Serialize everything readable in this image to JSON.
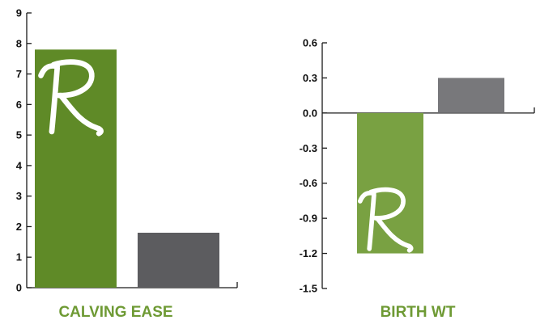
{
  "chart_data": [
    {
      "type": "bar",
      "categories": [
        "CALVING EASE"
      ],
      "series": [
        {
          "values": [
            7.8
          ],
          "color": "#5f8a27",
          "marker": "R"
        },
        {
          "values": [
            1.8
          ],
          "color": "#5c5c5f"
        }
      ],
      "xlabel": "CALVING EASE",
      "ylabel": "",
      "ylim": [
        0,
        9
      ],
      "yticks": [
        0,
        1,
        2,
        3,
        4,
        5,
        6,
        7,
        8,
        9
      ],
      "ytick_labels": [
        "0",
        "1",
        "2",
        "3",
        "4",
        "5",
        "6",
        "7",
        "8",
        "9"
      ],
      "grid": false
    },
    {
      "type": "bar",
      "categories": [
        "BIRTH WT"
      ],
      "series": [
        {
          "values": [
            -1.2
          ],
          "color": "#79a142",
          "marker": "R"
        },
        {
          "values": [
            0.3
          ],
          "color": "#78787b"
        }
      ],
      "xlabel": "BIRTH WT",
      "ylabel": "",
      "ylim": [
        -1.5,
        0.6
      ],
      "yticks": [
        0.6,
        0.3,
        0.0,
        -0.3,
        -0.6,
        -0.9,
        -1.2,
        -1.5
      ],
      "ytick_labels": [
        "0.6",
        "0.3",
        "0.0",
        "-0.3",
        "-0.6",
        "-0.9",
        "-1.2",
        "-1.5"
      ],
      "grid": false
    }
  ],
  "colors": {
    "axis": "#1a1a1a",
    "label_green": "#6e9a34",
    "marker_white": "#ffffff"
  }
}
